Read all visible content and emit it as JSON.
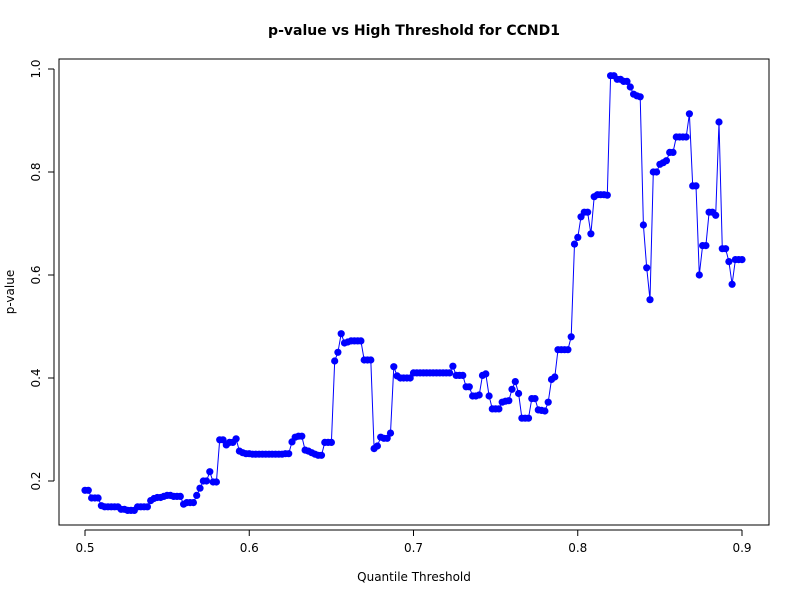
{
  "chart_data": {
    "type": "line",
    "title": "p-value vs High Threshold for CCND1",
    "xlabel": "Quantile Threshold",
    "ylabel": "p-value",
    "xlim": [
      0.5,
      0.9
    ],
    "ylim": [
      0.14,
      1.0
    ],
    "x_ticks": [
      {
        "value": 0.5,
        "label": "0.5"
      },
      {
        "value": 0.6,
        "label": "0.6"
      },
      {
        "value": 0.7,
        "label": "0.7"
      },
      {
        "value": 0.8,
        "label": "0.8"
      },
      {
        "value": 0.9,
        "label": "0.9"
      }
    ],
    "y_ticks": [
      {
        "value": 0.2,
        "label": "0.2"
      },
      {
        "value": 0.4,
        "label": "0.4"
      },
      {
        "value": 0.6,
        "label": "0.6"
      },
      {
        "value": 0.8,
        "label": "0.8"
      },
      {
        "value": 1.0,
        "label": "1.0"
      }
    ],
    "grid": false,
    "legend": "none",
    "series": [
      {
        "color": "#0000ff",
        "markers": true,
        "x": [
          0.5,
          0.502,
          0.504,
          0.506,
          0.508,
          0.51,
          0.512,
          0.514,
          0.516,
          0.518,
          0.52,
          0.522,
          0.524,
          0.526,
          0.528,
          0.53,
          0.532,
          0.534,
          0.536,
          0.538,
          0.54,
          0.542,
          0.544,
          0.546,
          0.548,
          0.55,
          0.552,
          0.554,
          0.556,
          0.558,
          0.56,
          0.562,
          0.564,
          0.566,
          0.568,
          0.57,
          0.572,
          0.574,
          0.576,
          0.578,
          0.58,
          0.582,
          0.584,
          0.586,
          0.588,
          0.59,
          0.592,
          0.594,
          0.596,
          0.598,
          0.6,
          0.602,
          0.604,
          0.606,
          0.608,
          0.61,
          0.612,
          0.614,
          0.616,
          0.618,
          0.62,
          0.622,
          0.624,
          0.626,
          0.628,
          0.63,
          0.632,
          0.634,
          0.636,
          0.638,
          0.64,
          0.642,
          0.644,
          0.646,
          0.648,
          0.65,
          0.652,
          0.654,
          0.656,
          0.658,
          0.66,
          0.662,
          0.664,
          0.666,
          0.668,
          0.67,
          0.672,
          0.674,
          0.676,
          0.678,
          0.68,
          0.682,
          0.684,
          0.686,
          0.688,
          0.69,
          0.692,
          0.694,
          0.696,
          0.698,
          0.7,
          0.702,
          0.704,
          0.706,
          0.708,
          0.71,
          0.712,
          0.714,
          0.716,
          0.718,
          0.72,
          0.722,
          0.724,
          0.726,
          0.728,
          0.73,
          0.732,
          0.734,
          0.736,
          0.738,
          0.74,
          0.742,
          0.744,
          0.746,
          0.748,
          0.75,
          0.752,
          0.754,
          0.756,
          0.758,
          0.76,
          0.762,
          0.764,
          0.766,
          0.768,
          0.77,
          0.772,
          0.774,
          0.776,
          0.778,
          0.78,
          0.782,
          0.784,
          0.786,
          0.788,
          0.79,
          0.792,
          0.794,
          0.796,
          0.798,
          0.8,
          0.802,
          0.804,
          0.806,
          0.808,
          0.81,
          0.812,
          0.814,
          0.816,
          0.818,
          0.82,
          0.822,
          0.824,
          0.826,
          0.828,
          0.83,
          0.832,
          0.834,
          0.836,
          0.838,
          0.84,
          0.842,
          0.844,
          0.846,
          0.848,
          0.85,
          0.852,
          0.854,
          0.856,
          0.858,
          0.86,
          0.862,
          0.864,
          0.866,
          0.868,
          0.87,
          0.872,
          0.874,
          0.876,
          0.878,
          0.88,
          0.882,
          0.884,
          0.886,
          0.888,
          0.89,
          0.892,
          0.894,
          0.896,
          0.898,
          0.9
        ],
        "y": [
          0.182,
          0.182,
          0.167,
          0.167,
          0.167,
          0.152,
          0.15,
          0.15,
          0.15,
          0.15,
          0.15,
          0.145,
          0.145,
          0.143,
          0.143,
          0.143,
          0.15,
          0.15,
          0.15,
          0.15,
          0.162,
          0.166,
          0.168,
          0.168,
          0.17,
          0.172,
          0.172,
          0.17,
          0.17,
          0.17,
          0.155,
          0.158,
          0.158,
          0.158,
          0.172,
          0.186,
          0.2,
          0.2,
          0.218,
          0.198,
          0.198,
          0.28,
          0.28,
          0.27,
          0.275,
          0.275,
          0.282,
          0.258,
          0.255,
          0.253,
          0.253,
          0.252,
          0.252,
          0.252,
          0.252,
          0.252,
          0.252,
          0.252,
          0.252,
          0.252,
          0.252,
          0.253,
          0.253,
          0.276,
          0.285,
          0.287,
          0.287,
          0.26,
          0.258,
          0.255,
          0.252,
          0.25,
          0.25,
          0.275,
          0.275,
          0.275,
          0.433,
          0.45,
          0.486,
          0.468,
          0.47,
          0.472,
          0.472,
          0.472,
          0.472,
          0.435,
          0.435,
          0.435,
          0.263,
          0.268,
          0.285,
          0.283,
          0.283,
          0.293,
          0.422,
          0.404,
          0.4,
          0.4,
          0.4,
          0.4,
          0.41,
          0.41,
          0.41,
          0.41,
          0.41,
          0.41,
          0.41,
          0.41,
          0.41,
          0.41,
          0.41,
          0.41,
          0.423,
          0.405,
          0.405,
          0.405,
          0.383,
          0.383,
          0.365,
          0.365,
          0.367,
          0.405,
          0.408,
          0.365,
          0.34,
          0.34,
          0.34,
          0.353,
          0.355,
          0.356,
          0.378,
          0.393,
          0.37,
          0.322,
          0.322,
          0.322,
          0.36,
          0.36,
          0.338,
          0.337,
          0.336,
          0.353,
          0.397,
          0.402,
          0.455,
          0.455,
          0.455,
          0.455,
          0.48,
          0.66,
          0.673,
          0.713,
          0.722,
          0.722,
          0.68,
          0.752,
          0.756,
          0.756,
          0.756,
          0.755,
          0.987,
          0.987,
          0.98,
          0.98,
          0.976,
          0.976,
          0.965,
          0.951,
          0.948,
          0.946,
          0.697,
          0.614,
          0.552,
          0.8,
          0.8,
          0.815,
          0.818,
          0.822,
          0.838,
          0.838,
          0.868,
          0.868,
          0.868,
          0.868,
          0.913,
          0.773,
          0.773,
          0.6,
          0.657,
          0.657,
          0.722,
          0.722,
          0.716,
          0.897,
          0.651,
          0.651,
          0.626,
          0.582,
          0.63,
          0.63,
          0.63
        ]
      }
    ]
  }
}
